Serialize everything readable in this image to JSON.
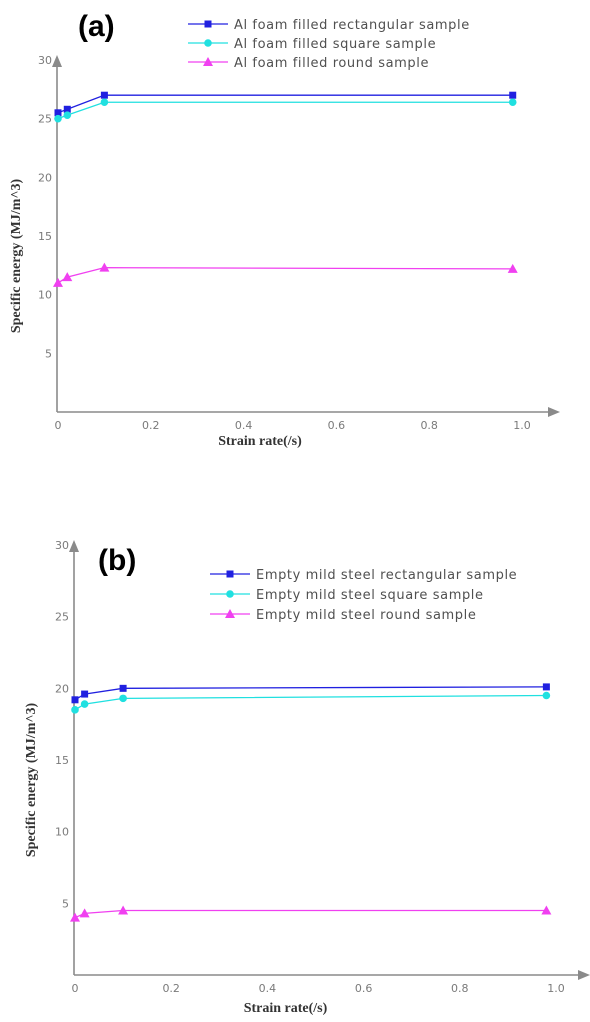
{
  "charts": [
    {
      "panel_label": "(a)",
      "type": "line",
      "xlabel": "Strain rate(/s)",
      "ylabel": "Specific energy (MJ/m^3)",
      "xlim": [
        0,
        1.0
      ],
      "ylim": [
        0,
        30
      ],
      "x_ticks": [
        "0",
        "0.2",
        "0.4",
        "0.6",
        "0.8",
        "1.0"
      ],
      "y_ticks": [
        "5",
        "10",
        "15",
        "20",
        "25",
        "30"
      ],
      "grid": false,
      "legend_position": "top",
      "series": [
        {
          "name": "Al foam filled rectangular sample",
          "color": "#2020e0",
          "marker": "square",
          "x": [
            0,
            0.02,
            0.1,
            0.98
          ],
          "y": [
            25.5,
            25.8,
            27.0,
            27.0
          ]
        },
        {
          "name": "Al foam filled square sample",
          "color": "#20e0e0",
          "marker": "circle",
          "x": [
            0,
            0.02,
            0.1,
            0.98
          ],
          "y": [
            25.0,
            25.3,
            26.4,
            26.4
          ]
        },
        {
          "name": "Al foam filled round sample",
          "color": "#f040f0",
          "marker": "triangle",
          "x": [
            0,
            0.02,
            0.1,
            0.98
          ],
          "y": [
            11.0,
            11.5,
            12.3,
            12.2
          ]
        }
      ]
    },
    {
      "panel_label": "(b)",
      "type": "line",
      "xlabel": "Strain rate(/s)",
      "ylabel": "Specific energy (MJ/m^3)",
      "xlim": [
        0,
        1.0
      ],
      "ylim": [
        0,
        30
      ],
      "x_ticks": [
        "0",
        "0.2",
        "0.4",
        "0.6",
        "0.8",
        "1.0"
      ],
      "y_ticks": [
        "5",
        "10",
        "15",
        "20",
        "25",
        "30"
      ],
      "grid": false,
      "legend_position": "top",
      "series": [
        {
          "name": "Empty mild steel rectangular sample",
          "color": "#2020e0",
          "marker": "square",
          "x": [
            0,
            0.02,
            0.1,
            0.98
          ],
          "y": [
            19.2,
            19.6,
            20.0,
            20.1
          ]
        },
        {
          "name": "Empty mild steel square sample",
          "color": "#20e0e0",
          "marker": "circle",
          "x": [
            0,
            0.02,
            0.1,
            0.98
          ],
          "y": [
            18.5,
            18.9,
            19.3,
            19.5
          ]
        },
        {
          "name": "Empty mild steel round sample",
          "color": "#f040f0",
          "marker": "triangle",
          "x": [
            0,
            0.02,
            0.1,
            0.98
          ],
          "y": [
            4.0,
            4.3,
            4.5,
            4.5
          ]
        }
      ]
    }
  ],
  "chart_data": [
    {
      "type": "line",
      "title": "(a)",
      "xlabel": "Strain rate(/s)",
      "ylabel": "Specific energy (MJ/m^3)",
      "xlim": [
        0,
        1.0
      ],
      "ylim": [
        0,
        30
      ],
      "series": [
        {
          "name": "Al foam filled rectangular sample",
          "x": [
            0,
            0.02,
            0.1,
            0.98
          ],
          "y": [
            25.5,
            25.8,
            27.0,
            27.0
          ]
        },
        {
          "name": "Al foam filled square sample",
          "x": [
            0,
            0.02,
            0.1,
            0.98
          ],
          "y": [
            25.0,
            25.3,
            26.4,
            26.4
          ]
        },
        {
          "name": "Al foam filled round sample",
          "x": [
            0,
            0.02,
            0.1,
            0.98
          ],
          "y": [
            11.0,
            11.5,
            12.3,
            12.2
          ]
        }
      ]
    },
    {
      "type": "line",
      "title": "(b)",
      "xlabel": "Strain rate(/s)",
      "ylabel": "Specific energy (MJ/m^3)",
      "xlim": [
        0,
        1.0
      ],
      "ylim": [
        0,
        30
      ],
      "series": [
        {
          "name": "Empty mild steel rectangular sample",
          "x": [
            0,
            0.02,
            0.1,
            0.98
          ],
          "y": [
            19.2,
            19.6,
            20.0,
            20.1
          ]
        },
        {
          "name": "Empty mild steel square sample",
          "x": [
            0,
            0.02,
            0.1,
            0.98
          ],
          "y": [
            18.5,
            18.9,
            19.3,
            19.5
          ]
        },
        {
          "name": "Empty mild steel round sample",
          "x": [
            0,
            0.02,
            0.1,
            0.98
          ],
          "y": [
            4.0,
            4.3,
            4.5,
            4.5
          ]
        }
      ]
    }
  ]
}
